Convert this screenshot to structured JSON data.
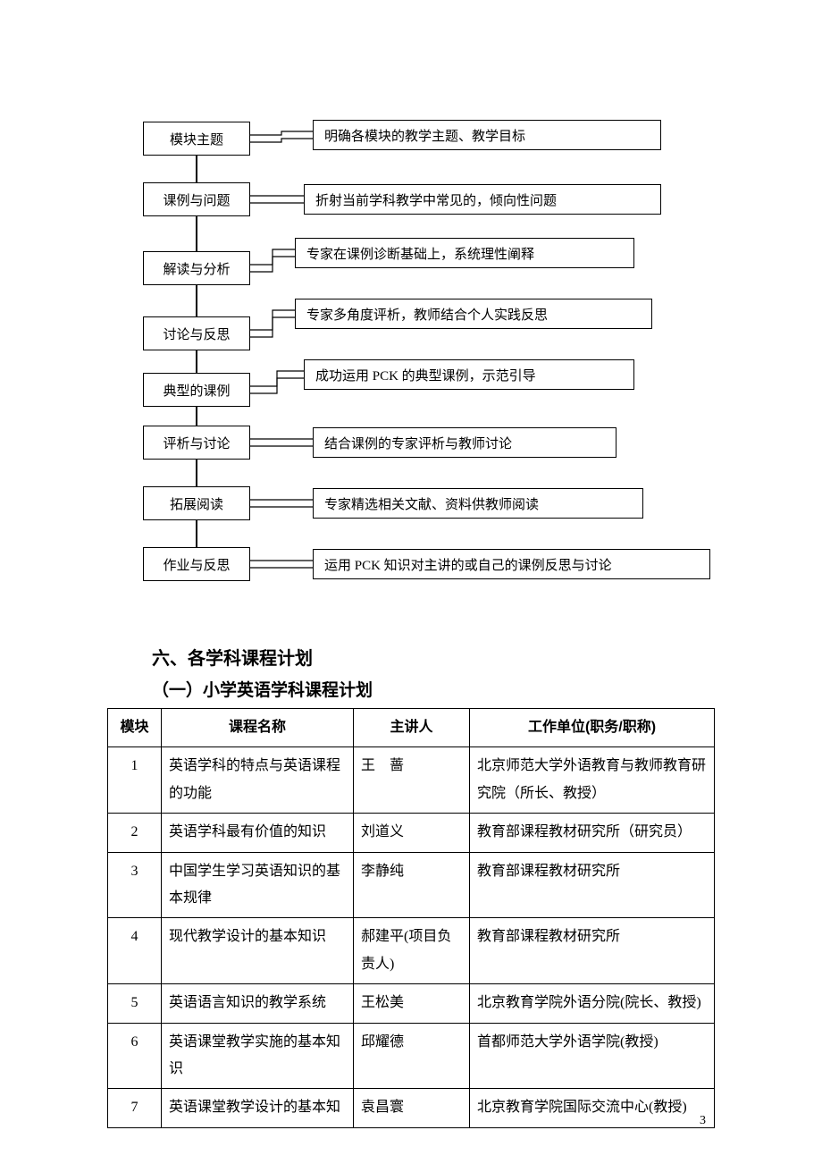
{
  "flow": {
    "rows": [
      {
        "left": "模块主题",
        "right": "明确各模块的教学主题、教学目标",
        "rl": 190,
        "rw": 390,
        "lt": 6,
        "rt": 4
      },
      {
        "left": "课例与问题",
        "right": "折射当前学科教学中常见的，倾向性问题",
        "rl": 180,
        "rw": 400,
        "lt": 6,
        "rt": 8
      },
      {
        "left": "解读与分析",
        "right": "专家在课例诊断基础上，系统理性阐释",
        "rl": 170,
        "rw": 380,
        "lt": 15,
        "rt": 0
      },
      {
        "left": "讨论与反思",
        "right": "专家多角度评析，教师结合个人实践反思",
        "rl": 170,
        "rw": 400,
        "lt": 20,
        "rt": 0
      },
      {
        "left": "典型的课例",
        "right": "成功运用 PCK 的典型课例，示范引导",
        "rl": 180,
        "rw": 370,
        "lt": 15,
        "rt": 0
      },
      {
        "left": "评析与讨论",
        "right": "结合课例的专家评析与教师讨论",
        "rl": 190,
        "rw": 340,
        "lt": 6,
        "rt": 8
      },
      {
        "left": "拓展阅读",
        "right": "专家精选相关文献、资料供教师阅读",
        "rl": 190,
        "rw": 370,
        "lt": 6,
        "rt": 8
      },
      {
        "left": "作业与反思",
        "right": "运用 PCK 知识对主讲的或自己的课例反思与讨论",
        "rl": 190,
        "rw": 445,
        "lt": 6,
        "rt": 8
      }
    ]
  },
  "headings": {
    "h1": "六、各学科课程计划",
    "h2": "（一）小学英语学科课程计划"
  },
  "table": {
    "headers": {
      "c1": "模块",
      "c2": "课程名称",
      "c3": "主讲人",
      "c4": "工作单位(职务/职称)"
    },
    "rows": [
      {
        "m": "1",
        "name": "英语学科的特点与英语课程的功能",
        "lect": "王　蔷",
        "unit": "北京师范大学外语教育与教师教育研究院（所长、教授）"
      },
      {
        "m": "2",
        "name": "英语学科最有价值的知识",
        "lect": "刘道义",
        "unit": "教育部课程教材研究所（研究员）"
      },
      {
        "m": "3",
        "name": "中国学生学习英语知识的基本规律",
        "lect": "李静纯",
        "unit": "教育部课程教材研究所"
      },
      {
        "m": "4",
        "name": "现代教学设计的基本知识",
        "lect": "郝建平(项目负责人)",
        "unit": "教育部课程教材研究所"
      },
      {
        "m": "5",
        "name": "英语语言知识的教学系统",
        "lect": "王松美",
        "unit": "北京教育学院外语分院(院长、教授)"
      },
      {
        "m": "6",
        "name": "英语课堂教学实施的基本知识",
        "lect": "邱耀德",
        "unit": "首都师范大学外语学院(教授)"
      },
      {
        "m": "7",
        "name": "英语课堂教学设计的基本知",
        "lect": "袁昌寰",
        "unit": "北京教育学院国际交流中心(教授)"
      }
    ]
  },
  "page": "3"
}
